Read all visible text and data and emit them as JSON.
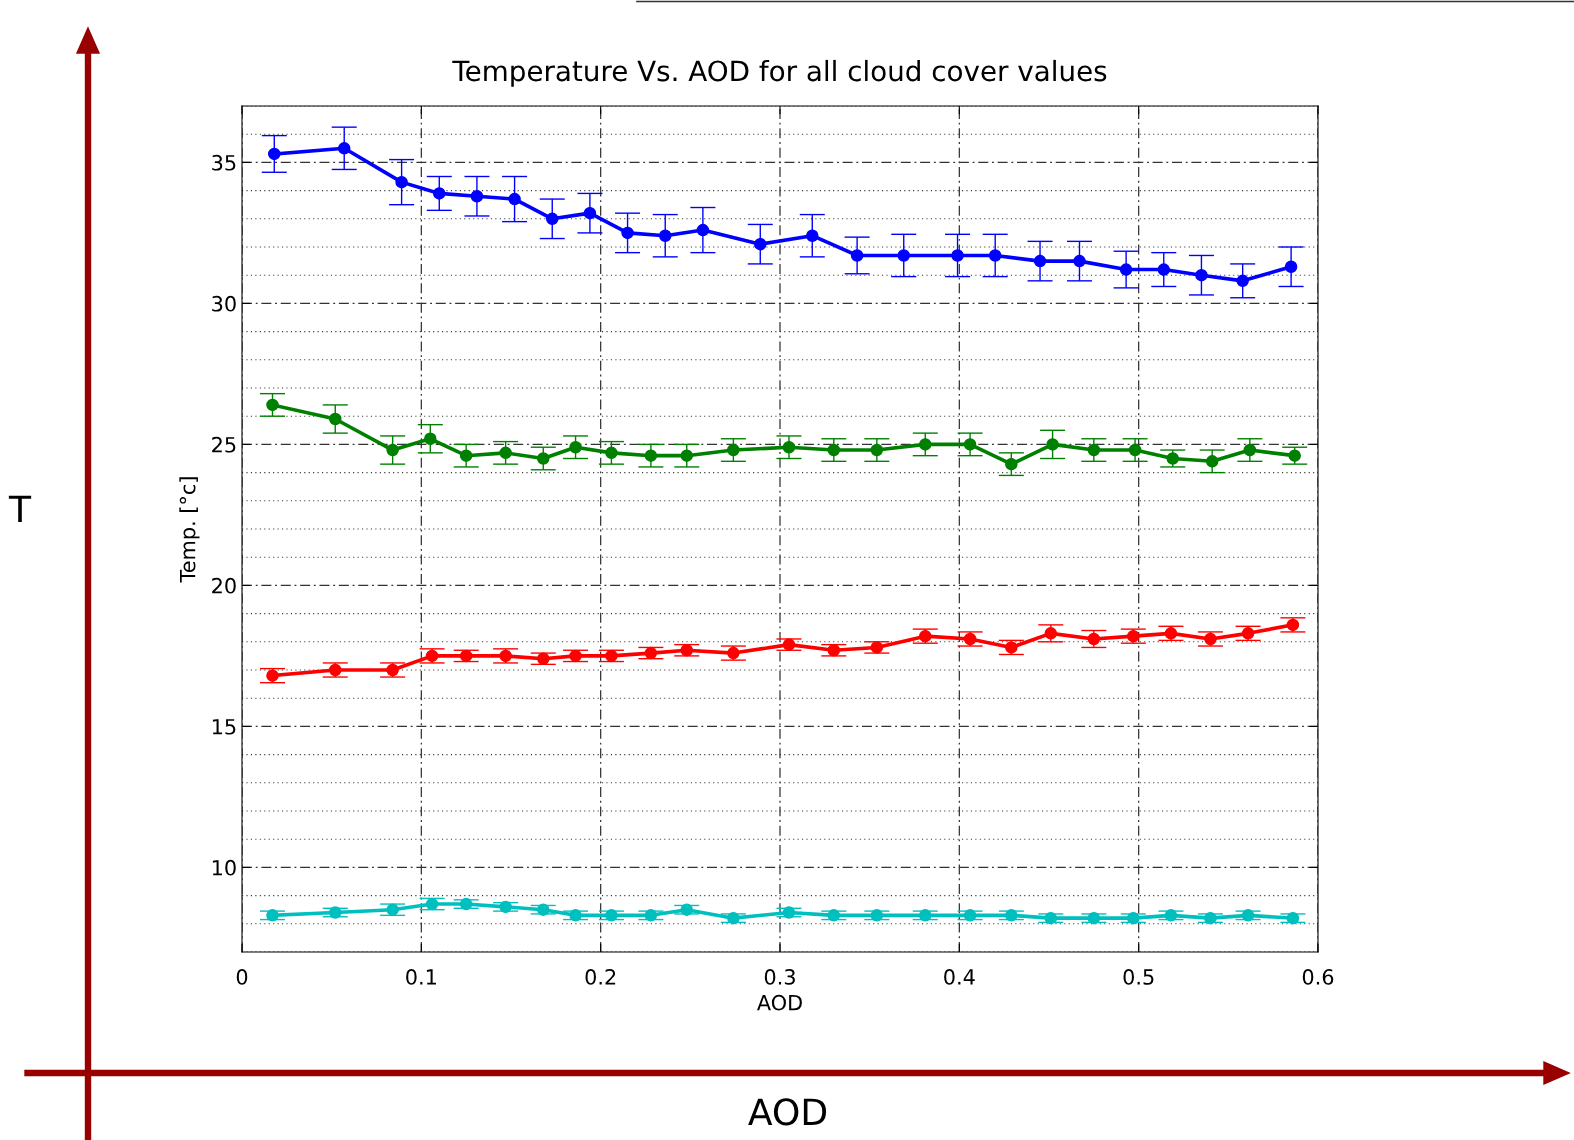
{
  "chart_data": {
    "type": "line",
    "title": "Temperature Vs. AOD for all cloud cover values",
    "xlabel": "AOD",
    "ylabel": "Temp. [°c]",
    "xlim": [
      0,
      0.6
    ],
    "xticks": [
      0,
      0.1,
      0.2,
      0.3,
      0.4,
      0.5,
      0.6
    ],
    "ylim": [
      7,
      37
    ],
    "yticks": [
      10,
      15,
      20,
      25,
      30,
      35
    ],
    "grid": true,
    "marker": "circle",
    "line_style": "solid",
    "annotations": [
      "T",
      "AOD"
    ],
    "series": [
      {
        "color": "#0000ff",
        "x": [
          0.018,
          0.057,
          0.089,
          0.11,
          0.131,
          0.152,
          0.173,
          0.194,
          0.215,
          0.236,
          0.257,
          0.289,
          0.318,
          0.343,
          0.369,
          0.399,
          0.42,
          0.445,
          0.467,
          0.493,
          0.514,
          0.535,
          0.558,
          0.585
        ],
        "values": [
          35.3,
          35.5,
          34.3,
          33.9,
          33.8,
          33.7,
          33.0,
          33.2,
          32.5,
          32.4,
          32.6,
          32.1,
          32.4,
          31.7,
          31.7,
          31.7,
          31.7,
          31.5,
          31.5,
          31.2,
          31.2,
          31.0,
          30.8,
          31.3
        ],
        "errors": [
          0.65,
          0.75,
          0.8,
          0.6,
          0.7,
          0.8,
          0.7,
          0.7,
          0.7,
          0.75,
          0.8,
          0.7,
          0.75,
          0.65,
          0.75,
          0.75,
          0.75,
          0.7,
          0.7,
          0.65,
          0.6,
          0.7,
          0.6,
          0.7
        ]
      },
      {
        "color": "#008000",
        "x": [
          0.017,
          0.052,
          0.084,
          0.105,
          0.125,
          0.147,
          0.168,
          0.186,
          0.206,
          0.228,
          0.248,
          0.274,
          0.305,
          0.33,
          0.354,
          0.381,
          0.406,
          0.429,
          0.452,
          0.475,
          0.498,
          0.519,
          0.541,
          0.562,
          0.587
        ],
        "values": [
          26.4,
          25.9,
          24.8,
          25.2,
          24.6,
          24.7,
          24.5,
          24.9,
          24.7,
          24.6,
          24.6,
          24.8,
          24.9,
          24.8,
          24.8,
          25.0,
          25.0,
          24.3,
          25.0,
          24.8,
          24.8,
          24.5,
          24.4,
          24.8,
          24.6
        ],
        "errors": [
          0.4,
          0.5,
          0.5,
          0.5,
          0.4,
          0.4,
          0.4,
          0.4,
          0.4,
          0.4,
          0.4,
          0.4,
          0.4,
          0.4,
          0.4,
          0.4,
          0.4,
          0.4,
          0.5,
          0.4,
          0.4,
          0.3,
          0.4,
          0.4,
          0.3
        ]
      },
      {
        "color": "#ff0000",
        "x": [
          0.017,
          0.052,
          0.084,
          0.106,
          0.125,
          0.147,
          0.168,
          0.186,
          0.206,
          0.228,
          0.248,
          0.274,
          0.305,
          0.33,
          0.354,
          0.381,
          0.406,
          0.429,
          0.451,
          0.475,
          0.497,
          0.518,
          0.54,
          0.561,
          0.586
        ],
        "values": [
          16.8,
          17.0,
          17.0,
          17.5,
          17.5,
          17.5,
          17.4,
          17.5,
          17.5,
          17.6,
          17.7,
          17.6,
          17.9,
          17.7,
          17.8,
          18.2,
          18.1,
          17.8,
          18.3,
          18.1,
          18.2,
          18.3,
          18.1,
          18.3,
          18.6
        ],
        "errors": [
          0.25,
          0.25,
          0.25,
          0.25,
          0.2,
          0.25,
          0.2,
          0.2,
          0.2,
          0.2,
          0.2,
          0.25,
          0.2,
          0.2,
          0.2,
          0.25,
          0.25,
          0.25,
          0.3,
          0.3,
          0.25,
          0.25,
          0.25,
          0.25,
          0.25
        ]
      },
      {
        "color": "#00bfbf",
        "x": [
          0.017,
          0.052,
          0.084,
          0.106,
          0.125,
          0.147,
          0.168,
          0.186,
          0.206,
          0.228,
          0.248,
          0.274,
          0.305,
          0.33,
          0.354,
          0.381,
          0.406,
          0.429,
          0.451,
          0.475,
          0.497,
          0.518,
          0.54,
          0.561,
          0.586
        ],
        "values": [
          8.3,
          8.4,
          8.5,
          8.7,
          8.7,
          8.6,
          8.5,
          8.3,
          8.3,
          8.3,
          8.5,
          8.2,
          8.4,
          8.3,
          8.3,
          8.3,
          8.3,
          8.3,
          8.2,
          8.2,
          8.2,
          8.3,
          8.2,
          8.3,
          8.2
        ],
        "errors": [
          0.15,
          0.15,
          0.2,
          0.2,
          0.15,
          0.15,
          0.15,
          0.15,
          0.15,
          0.15,
          0.15,
          0.15,
          0.15,
          0.15,
          0.15,
          0.15,
          0.15,
          0.15,
          0.15,
          0.15,
          0.15,
          0.15,
          0.15,
          0.15,
          0.15
        ]
      }
    ]
  }
}
